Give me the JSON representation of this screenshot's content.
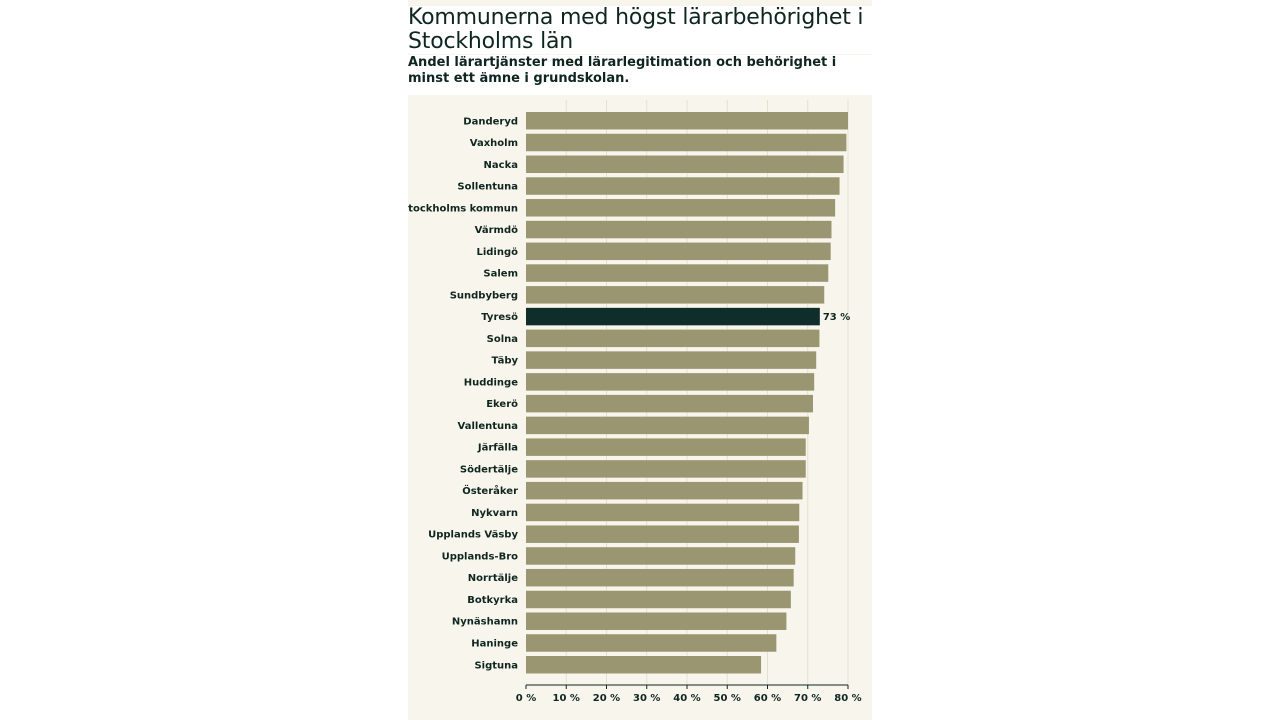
{
  "header": {
    "title": "Kommunerna med högst lärarbehörighet i Stockholms län",
    "subtitle": "Andel lärartjänster med lärarlegitimation och behörighet i minst ett ämne i grundskolan."
  },
  "colors": {
    "bar": "#9b9672",
    "highlight": "#0f2e2b",
    "background": "#f8f6ec",
    "grid": "#e4e1cf",
    "text": "#0f2620"
  },
  "chart_data": {
    "type": "bar",
    "orientation": "horizontal",
    "title": "Kommunerna med högst lärarbehörighet i Stockholms län",
    "subtitle": "Andel lärartjänster med lärarlegitimation och behörighet i minst ett ämne i grundskolan.",
    "xlabel": "",
    "ylabel": "",
    "xlim": [
      0,
      80
    ],
    "unit": "%",
    "grid": true,
    "ticks": [
      {
        "value": 0,
        "label": "0 %"
      },
      {
        "value": 10,
        "label": "10 %"
      },
      {
        "value": 20,
        "label": "20 %"
      },
      {
        "value": 30,
        "label": "30 %"
      },
      {
        "value": 40,
        "label": "40 %"
      },
      {
        "value": 50,
        "label": "50 %"
      },
      {
        "value": 60,
        "label": "60 %"
      },
      {
        "value": 70,
        "label": "70 %"
      },
      {
        "value": 80,
        "label": "80 %"
      }
    ],
    "categories": [
      "Danderyd",
      "Vaxholm",
      "Nacka",
      "Sollentuna",
      "Stockholms kommun",
      "Värmdö",
      "Lidingö",
      "Salem",
      "Sundbyberg",
      "Tyresö",
      "Solna",
      "Täby",
      "Huddinge",
      "Ekerö",
      "Vallentuna",
      "Järfälla",
      "Södertälje",
      "Österåker",
      "Nykvarn",
      "Upplands Väsby",
      "Upplands-Bro",
      "Norrtälje",
      "Botkyrka",
      "Nynäshamn",
      "Haninge",
      "Sigtuna"
    ],
    "values": [
      80,
      79.6,
      78.9,
      77.9,
      76.8,
      75.9,
      75.7,
      75.1,
      74.1,
      73,
      72.9,
      72.1,
      71.6,
      71.3,
      70.3,
      69.5,
      69.5,
      68.7,
      67.9,
      67.8,
      66.9,
      66.5,
      65.8,
      64.7,
      62.2,
      58.4
    ],
    "highlight": {
      "category": "Tyresö",
      "label": "73 %"
    }
  }
}
